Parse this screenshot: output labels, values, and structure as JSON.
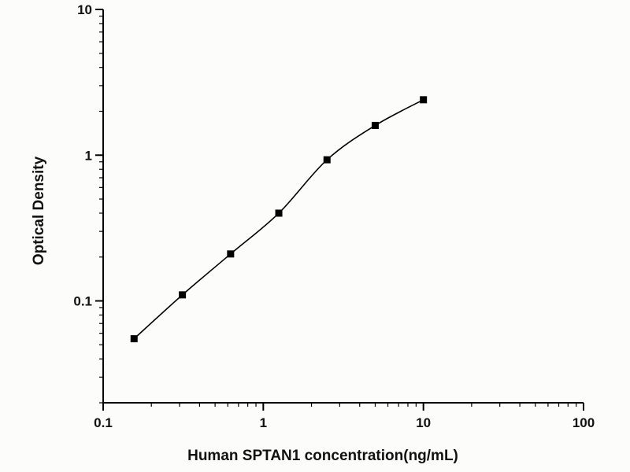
{
  "chart_data": {
    "type": "scatter",
    "subtype": "scatter-with-smooth-line",
    "x": [
      0.156,
      0.3125,
      0.625,
      1.25,
      2.5,
      5,
      10
    ],
    "y": [
      0.055,
      0.11,
      0.21,
      0.4,
      0.93,
      1.6,
      2.4
    ],
    "xlabel": "Human SPTAN1 concentration(ng/mL)",
    "ylabel": "Optical Density",
    "xscale": "log",
    "yscale": "log",
    "xlim": [
      0.1,
      100
    ],
    "ylim": [
      0.02,
      10
    ],
    "x_major_ticks": [
      0.1,
      1,
      10,
      100
    ],
    "x_tick_labels": [
      "0.1",
      "1",
      "10",
      "100"
    ],
    "y_major_ticks": [
      0.1,
      1,
      10
    ],
    "y_tick_labels": [
      "0.1",
      "1",
      "10"
    ],
    "grid": "off",
    "legend": "none",
    "marker": "filled-square",
    "line_color": "#000000",
    "marker_color": "#000000",
    "axis_color": "#000000",
    "background": "#fcfcfa"
  }
}
